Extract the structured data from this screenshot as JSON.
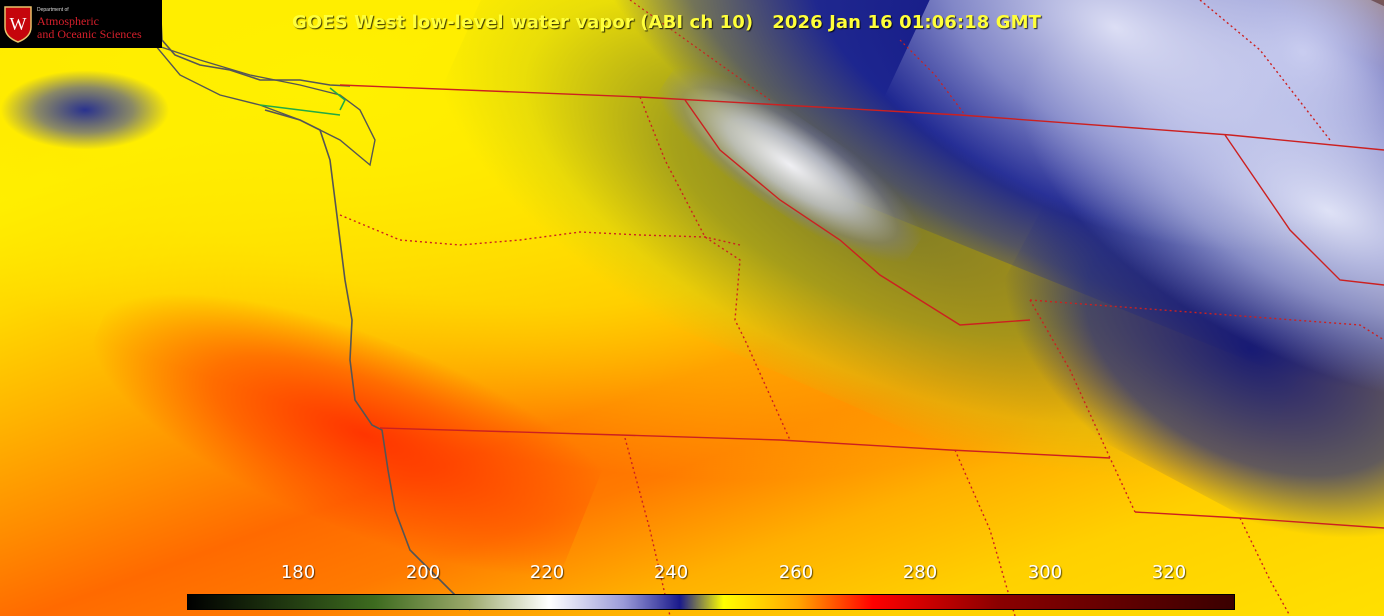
{
  "title": "GOES West low-level water vapor (ABI ch 10)   2026 Jan 16 01:06:18 GMT",
  "logo": {
    "small_text": "Department of",
    "line1": "Atmospheric",
    "line2": "and Oceanic Sciences",
    "crest_letter": "W",
    "icon": "uw-crest-icon",
    "colors": {
      "crest_red": "#c5050c",
      "text_red": "#d51f2b",
      "background": "#000000"
    }
  },
  "colorbar": {
    "ticks": [
      "180",
      "200",
      "220",
      "240",
      "260",
      "280",
      "300",
      "320"
    ],
    "range": [
      170,
      338
    ],
    "tick_values": [
      180,
      200,
      220,
      240,
      260,
      280,
      300,
      320
    ],
    "gradient_stops": [
      {
        "value": 170,
        "color": "#000000"
      },
      {
        "value": 200,
        "color": "#3d6b1f"
      },
      {
        "value": 215,
        "color": "#9ba86a"
      },
      {
        "value": 228,
        "color": "#ffffff"
      },
      {
        "value": 240,
        "color": "#9a9ad8"
      },
      {
        "value": 249,
        "color": "#1a1a8c"
      },
      {
        "value": 256,
        "color": "#ffff00"
      },
      {
        "value": 268,
        "color": "#ffa500"
      },
      {
        "value": 280,
        "color": "#ff0000"
      },
      {
        "value": 300,
        "color": "#8b0000"
      },
      {
        "value": 338,
        "color": "#3a0000"
      }
    ]
  },
  "map": {
    "coastline_color": "#555555",
    "state_border_color": "#cc2020",
    "lake_color": "#22aa44"
  }
}
